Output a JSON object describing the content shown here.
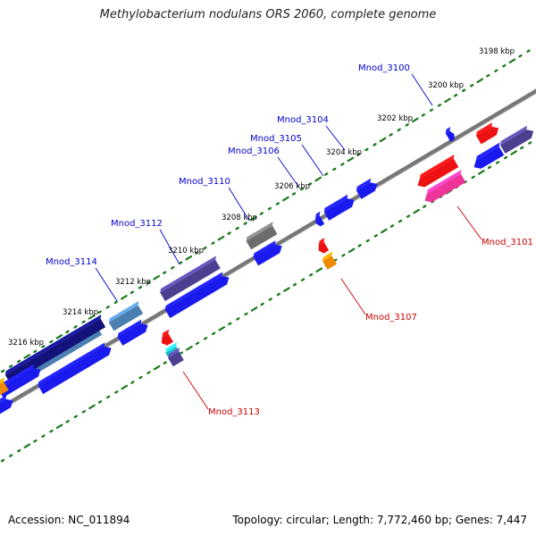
{
  "title": "Methylobacterium nodulans ORS 2060, complete genome",
  "footer": {
    "accession": "Accession: NC_011894",
    "stats": "Topology: circular; Length: 7,772,460 bp; Genes: 7,447"
  },
  "colors": {
    "backbone": "#777777",
    "tick": "#1a7a1a",
    "label_plus": "#0000cc",
    "label_minus": "#cc0000",
    "blue": "#1a1aee",
    "navy": "#12127a",
    "purple": "#4d3f8f",
    "steel": "#4a7fb0",
    "gray": "#6c6c6c",
    "red": "#ee1111",
    "pink": "#ee3399",
    "orange": "#f08a00",
    "cyan": "#1fb8c8"
  },
  "scale_labels": [
    "3198 kbp",
    "3200 kbp",
    "3202 kbp",
    "3204 kbp",
    "3206 kbp",
    "3208 kbp",
    "3210 kbp",
    "3212 kbp",
    "3214 kbp",
    "3216 kbp"
  ],
  "gene_labels_plus": [
    "Mnod_3100",
    "Mnod_3104",
    "Mnod_3105",
    "Mnod_3106",
    "Mnod_3110",
    "Mnod_3112",
    "Mnod_3114"
  ],
  "gene_labels_minus": [
    "Mnod_3101",
    "Mnod_3107",
    "Mnod_3113"
  ]
}
